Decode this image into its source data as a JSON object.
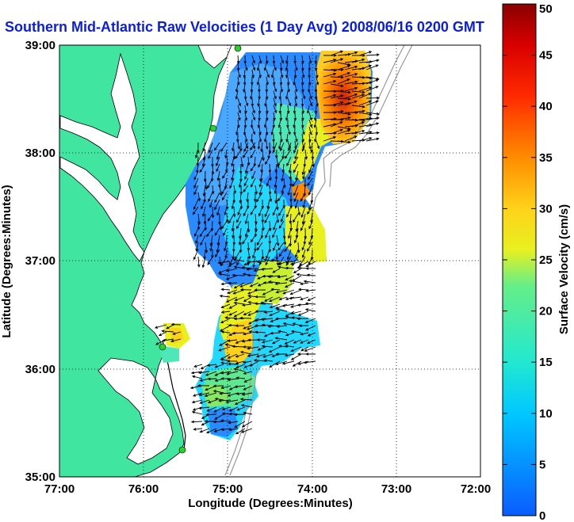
{
  "title": "Southern Mid-Atlantic Raw Velocities (1 Day Avg) 2008/06/16 0200 GMT",
  "chart_data": {
    "type": "heatmap",
    "xlabel": "Longitude (Degrees:Minutes)",
    "ylabel": "Latitude (Degrees:Minutes)",
    "x_ticks": [
      "77:00",
      "76:00",
      "75:00",
      "74:00",
      "73:00",
      "72:00"
    ],
    "y_ticks": [
      "39:00",
      "38:00",
      "37:00",
      "36:00",
      "35:00"
    ],
    "xlim": [
      -77,
      -72
    ],
    "ylim": [
      35,
      39
    ],
    "grid": true,
    "colorbar": {
      "label": "Surface Velocity (cm/s)",
      "range": [
        0,
        50
      ],
      "ticks": [
        "0",
        "5",
        "10",
        "15",
        "20",
        "25",
        "30",
        "35",
        "40",
        "45",
        "50"
      ]
    },
    "colors": {
      "land": "#40e6a0",
      "coast_line": "#000000",
      "bathymetry_line": "#999999",
      "vector": "#000000",
      "station": "#2ad12a",
      "title": "#0a1ee0"
    }
  }
}
